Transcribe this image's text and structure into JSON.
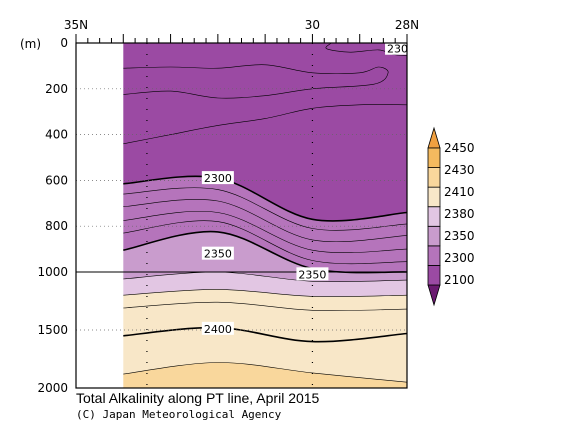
{
  "chart_data": {
    "type": "contour",
    "title": "Total Alkalinity along PT line, April 2015",
    "credit": "(C) Japan Meteorological Agency",
    "x_axis": {
      "range_lat": [
        35,
        28
      ],
      "tick_labels": [
        {
          "lat": 35,
          "label": "35N"
        },
        {
          "lat": 30,
          "label": "30"
        },
        {
          "lat": 28,
          "label": "28N"
        }
      ]
    },
    "y_axis": {
      "unit_label": "(m)",
      "range": [
        0,
        2000
      ],
      "tick_labels": [
        "0",
        "200",
        "400",
        "600",
        "800",
        "1000",
        "1500",
        "2000"
      ],
      "scale": "piecewise linear: 0-1000 m upper panel, 1000-2000 m compressed lower panel",
      "breakpoint": 1000
    },
    "colorbar": {
      "levels": [
        "2100",
        "2300",
        "2350",
        "2380",
        "2410",
        "2430",
        "2450"
      ],
      "extend": "both",
      "colors": [
        "#6a1a70",
        "#9b4aa3",
        "#b574bb",
        "#c99ccd",
        "#e2c6e3",
        "#f8e7c8",
        "#f9d79c",
        "#f4ba5f",
        "#f0a040"
      ]
    },
    "stations_lat": [
      33.5,
      30.0
    ],
    "data_region_lat": [
      34.0,
      28.0
    ],
    "contour_labels": [
      {
        "text": "2300",
        "lat": 32.0,
        "depth": 590
      },
      {
        "text": "2350",
        "lat": 32.0,
        "depth": 920
      },
      {
        "text": "2350",
        "lat": 30.0,
        "depth": 1020
      },
      {
        "text": "2400",
        "lat": 32.0,
        "depth": 1490
      },
      {
        "text": "230",
        "lat": 28.2,
        "depth": 25
      }
    ],
    "bands": [
      {
        "fill": "#9b4aa3",
        "top": [
          [
            34,
            0
          ],
          [
            28,
            0
          ]
        ],
        "bottom": [
          [
            34,
            615
          ],
          [
            32,
            590
          ],
          [
            30,
            770
          ],
          [
            28,
            740
          ]
        ]
      },
      {
        "fill": "#b574bb",
        "top": [
          [
            34,
            615
          ],
          [
            32,
            590
          ],
          [
            30,
            770
          ],
          [
            28,
            740
          ]
        ],
        "bottom": [
          [
            34,
            905
          ],
          [
            32,
            825
          ],
          [
            30,
            985
          ],
          [
            28,
            1000
          ]
        ]
      },
      {
        "fill": "#c99ccd",
        "top": [
          [
            34,
            905
          ],
          [
            32,
            825
          ],
          [
            30,
            985
          ],
          [
            28,
            1000
          ]
        ],
        "bottom": [
          [
            34,
            1060
          ],
          [
            32,
            1000
          ],
          [
            30,
            1080
          ],
          [
            28,
            1070
          ]
        ]
      },
      {
        "fill": "#e2c6e3",
        "top": [
          [
            34,
            1060
          ],
          [
            32,
            1000
          ],
          [
            30,
            1080
          ],
          [
            28,
            1070
          ]
        ],
        "bottom": [
          [
            34,
            1200
          ],
          [
            32,
            1150
          ],
          [
            30,
            1210
          ],
          [
            28,
            1200
          ]
        ]
      },
      {
        "fill": "#f8e7c8",
        "top": [
          [
            34,
            1200
          ],
          [
            32,
            1150
          ],
          [
            30,
            1210
          ],
          [
            28,
            1200
          ]
        ],
        "bottom": [
          [
            34,
            1880
          ],
          [
            32,
            1780
          ],
          [
            30,
            1870
          ],
          [
            28,
            1950
          ]
        ]
      },
      {
        "fill": "#f9d79c",
        "top": [
          [
            34,
            1880
          ],
          [
            32,
            1780
          ],
          [
            30,
            1870
          ],
          [
            28,
            1950
          ]
        ],
        "bottom": [
          [
            34,
            2000
          ],
          [
            28,
            2000
          ]
        ]
      }
    ],
    "contours": [
      {
        "w": 1.6,
        "pts": [
          [
            34,
            615
          ],
          [
            32,
            590
          ],
          [
            30,
            770
          ],
          [
            28,
            740
          ]
        ]
      },
      {
        "w": 0.6,
        "pts": [
          [
            34,
            660
          ],
          [
            32,
            640
          ],
          [
            30,
            810
          ],
          [
            28,
            790
          ]
        ]
      },
      {
        "w": 0.6,
        "pts": [
          [
            34,
            715
          ],
          [
            32,
            690
          ],
          [
            30,
            860
          ],
          [
            28,
            840
          ]
        ]
      },
      {
        "w": 0.6,
        "pts": [
          [
            34,
            775
          ],
          [
            32,
            740
          ],
          [
            30,
            905
          ],
          [
            28,
            900
          ]
        ]
      },
      {
        "w": 0.6,
        "pts": [
          [
            34,
            830
          ],
          [
            32,
            780
          ],
          [
            30,
            950
          ],
          [
            28,
            955
          ]
        ]
      },
      {
        "w": 1.6,
        "pts": [
          [
            34,
            905
          ],
          [
            32,
            825
          ],
          [
            30,
            985
          ],
          [
            28,
            1000
          ]
        ]
      },
      {
        "w": 0.6,
        "pts": [
          [
            34,
            1060
          ],
          [
            32,
            1000
          ],
          [
            30,
            1080
          ],
          [
            28,
            1070
          ]
        ]
      },
      {
        "w": 0.6,
        "pts": [
          [
            34,
            1200
          ],
          [
            32,
            1150
          ],
          [
            30,
            1210
          ],
          [
            28,
            1200
          ]
        ]
      },
      {
        "w": 0.6,
        "pts": [
          [
            34,
            1310
          ],
          [
            32,
            1260
          ],
          [
            30,
            1330
          ],
          [
            28,
            1320
          ]
        ]
      },
      {
        "w": 1.6,
        "pts": [
          [
            34,
            1550
          ],
          [
            32,
            1480
          ],
          [
            30,
            1600
          ],
          [
            28,
            1530
          ]
        ]
      },
      {
        "w": 0.6,
        "pts": [
          [
            34,
            1880
          ],
          [
            32,
            1780
          ],
          [
            30,
            1870
          ],
          [
            28,
            1950
          ]
        ]
      },
      {
        "w": 0.6,
        "pts": [
          [
            34,
            110
          ],
          [
            33,
            105
          ],
          [
            32,
            110
          ],
          [
            31,
            95
          ],
          [
            30,
            130
          ],
          [
            29,
            130
          ],
          [
            28.6,
            105
          ],
          [
            28.4,
            130
          ],
          [
            28.7,
            180
          ],
          [
            30,
            200
          ],
          [
            31,
            230
          ],
          [
            32,
            240
          ],
          [
            33,
            210
          ],
          [
            34,
            225
          ]
        ]
      },
      {
        "w": 0.6,
        "pts": [
          [
            34,
            440
          ],
          [
            33,
            400
          ],
          [
            32,
            360
          ],
          [
            31,
            330
          ],
          [
            30,
            285
          ],
          [
            29,
            270
          ],
          [
            28,
            270
          ]
        ]
      },
      {
        "w": 0.6,
        "pts": [
          [
            29.6,
            0
          ],
          [
            29.7,
            25
          ],
          [
            29.2,
            40
          ],
          [
            28.6,
            30
          ],
          [
            28.3,
            50
          ],
          [
            28,
            55
          ]
        ]
      }
    ]
  }
}
